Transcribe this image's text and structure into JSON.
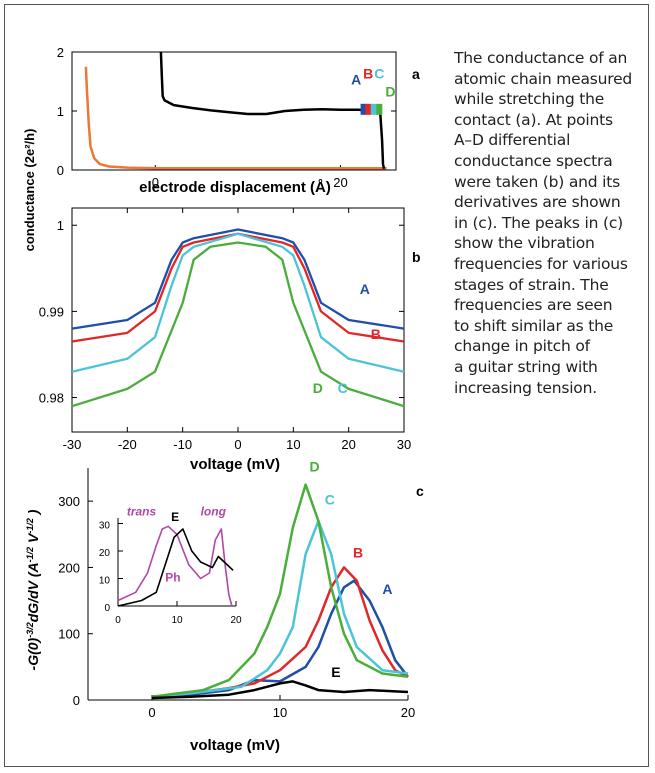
{
  "caption_lines": [
    "The conductance of an",
    "atomic chain measured",
    "while stretching the",
    "contact (a). At points",
    "A–D differential",
    "conductance spectra",
    "were taken (b) and its",
    "derivatives are shown",
    "in (c). The peaks in (c)",
    "show the vibration",
    "frequencies for various",
    "stages of strain. The",
    "frequencies are seen",
    "to shift similar as the",
    "change in pitch of",
    "a guitar string with",
    "increasing tension."
  ],
  "shared_ylabel": "conductance (2e²/h)",
  "colors": {
    "A": "#1f4fa8",
    "B": "#e02828",
    "C": "#4cc4d8",
    "D": "#4aae3a",
    "E": "#000000",
    "orange": "#ee7733",
    "inset": "#b048a8"
  },
  "chart_data": [
    {
      "panel": "a",
      "type": "line",
      "xlabel": "electrode displacement (Å)",
      "xlim": [
        -9,
        26
      ],
      "ylim": [
        0,
        2
      ],
      "xticks": [
        0,
        20
      ],
      "yticks": [
        0,
        1,
        2
      ],
      "point_labels": [
        "A",
        "B",
        "C",
        "D"
      ],
      "series": [
        {
          "color": "orange",
          "x": [
            -7.5,
            -7.4,
            -7.2,
            -7,
            -6.6,
            -6,
            -5,
            -3,
            0,
            10,
            20,
            24,
            25
          ],
          "y": [
            1.75,
            1.4,
            0.8,
            0.4,
            0.2,
            0.1,
            0.06,
            0.04,
            0.03,
            0.03,
            0.03,
            0.03,
            0.03
          ]
        },
        {
          "color": "E",
          "x": [
            0.6,
            0.7,
            0.8,
            1,
            2,
            4,
            6,
            8,
            10,
            12,
            14,
            16,
            18,
            20,
            22,
            23,
            24,
            24.3,
            24.5,
            24.6,
            24.7
          ],
          "y": [
            2,
            1.6,
            1.25,
            1.18,
            1.1,
            1.05,
            1.01,
            0.98,
            0.95,
            0.95,
            1,
            1.02,
            1.03,
            1.02,
            1.02,
            1.0,
            0.98,
            0.95,
            0.5,
            0.1,
            0.02
          ]
        }
      ]
    },
    {
      "panel": "b",
      "type": "line",
      "xlabel": "voltage (mV)",
      "xlim": [
        -30,
        30
      ],
      "ylim": [
        0.976,
        1.002
      ],
      "xticks": [
        -30,
        -20,
        -10,
        0,
        10,
        20,
        30
      ],
      "yticks": [
        0.98,
        0.99,
        1
      ],
      "series": [
        {
          "name": "A",
          "x": [
            -30,
            -20,
            -15,
            -12,
            -10,
            -8,
            0,
            8,
            10,
            12,
            15,
            20,
            30
          ],
          "y": [
            0.988,
            0.989,
            0.991,
            0.996,
            0.998,
            0.9985,
            0.9995,
            0.9985,
            0.998,
            0.996,
            0.991,
            0.989,
            0.988
          ]
        },
        {
          "name": "B",
          "x": [
            -30,
            -20,
            -15,
            -12,
            -10,
            -8,
            0,
            8,
            10,
            12,
            15,
            20,
            30
          ],
          "y": [
            0.9865,
            0.9875,
            0.99,
            0.995,
            0.9975,
            0.998,
            0.999,
            0.998,
            0.9975,
            0.995,
            0.99,
            0.9875,
            0.9865
          ]
        },
        {
          "name": "C",
          "x": [
            -30,
            -20,
            -15,
            -12,
            -10,
            -8,
            0,
            8,
            10,
            12,
            15,
            20,
            30
          ],
          "y": [
            0.983,
            0.9845,
            0.987,
            0.993,
            0.9965,
            0.9975,
            0.999,
            0.9975,
            0.9965,
            0.993,
            0.987,
            0.9845,
            0.983
          ]
        },
        {
          "name": "D",
          "x": [
            -30,
            -20,
            -15,
            -10,
            -8,
            -5,
            0,
            5,
            8,
            10,
            15,
            20,
            30
          ],
          "y": [
            0.979,
            0.981,
            0.983,
            0.991,
            0.996,
            0.9975,
            0.998,
            0.9975,
            0.996,
            0.991,
            0.983,
            0.981,
            0.979
          ]
        }
      ]
    },
    {
      "panel": "c",
      "type": "line",
      "xlabel": "voltage (mV)",
      "ylabel_parts": [
        "-G(0)",
        "-3/2",
        "dG/dV (A",
        "-1/2",
        " V",
        "-1/2",
        " )"
      ],
      "xlim": [
        -5,
        20
      ],
      "ylim": [
        0,
        350
      ],
      "xticks": [
        0,
        10,
        20
      ],
      "yticks": [
        0,
        100,
        200,
        300
      ],
      "series": [
        {
          "name": "A",
          "x": [
            0,
            3,
            6,
            8,
            10,
            12,
            13,
            14,
            15,
            15.8,
            17,
            18,
            19,
            20
          ],
          "y": [
            5,
            8,
            15,
            30,
            28,
            50,
            80,
            130,
            170,
            180,
            150,
            110,
            60,
            35
          ]
        },
        {
          "name": "B",
          "x": [
            0,
            3,
            6,
            8,
            10,
            12,
            13,
            14,
            15,
            16,
            17,
            18,
            19,
            20
          ],
          "y": [
            5,
            10,
            18,
            25,
            45,
            80,
            120,
            170,
            200,
            180,
            120,
            75,
            45,
            35
          ]
        },
        {
          "name": "C",
          "x": [
            0,
            3,
            5,
            7,
            9,
            10,
            11,
            12,
            13,
            14,
            15,
            16,
            18,
            20
          ],
          "y": [
            5,
            10,
            15,
            20,
            45,
            70,
            110,
            220,
            270,
            220,
            130,
            80,
            45,
            40
          ]
        },
        {
          "name": "D",
          "x": [
            0,
            2,
            4,
            6,
            8,
            9,
            10,
            11,
            12,
            13,
            14,
            15,
            16,
            18,
            20
          ],
          "y": [
            5,
            10,
            15,
            30,
            70,
            110,
            160,
            260,
            325,
            270,
            170,
            100,
            60,
            40,
            35
          ]
        },
        {
          "name": "E",
          "x": [
            0,
            3,
            6,
            8,
            10,
            11,
            12,
            13,
            15,
            17,
            19,
            20
          ],
          "y": [
            3,
            5,
            8,
            15,
            25,
            28,
            22,
            15,
            12,
            15,
            13,
            12
          ]
        }
      ],
      "inset": {
        "xlim": [
          0,
          20
        ],
        "ylim": [
          0,
          32
        ],
        "xticks": [
          0,
          10,
          20
        ],
        "yticks": [
          0,
          10,
          20,
          30
        ],
        "series": [
          {
            "name": "trans",
            "color": "inset",
            "x": [
              0,
              3,
              5,
              6.5,
              7.5,
              8.5,
              10,
              12,
              14,
              15.5,
              16.5,
              17.5,
              18.2,
              18.8,
              19.3
            ],
            "y": [
              2,
              5,
              12,
              22,
              28,
              29,
              26,
              15,
              10,
              12,
              24,
              28,
              14,
              4,
              0
            ]
          },
          {
            "name": "E",
            "color": "E",
            "x": [
              0,
              4,
              6.5,
              8,
              9.5,
              11,
              12.5,
              14,
              16,
              17,
              18,
              19.5
            ],
            "y": [
              0,
              2,
              5,
              15,
              25,
              28,
              20,
              16,
              14,
              18,
              16,
              13
            ]
          }
        ],
        "labels": [
          "trans",
          "long",
          "E",
          "Ph"
        ]
      }
    }
  ]
}
